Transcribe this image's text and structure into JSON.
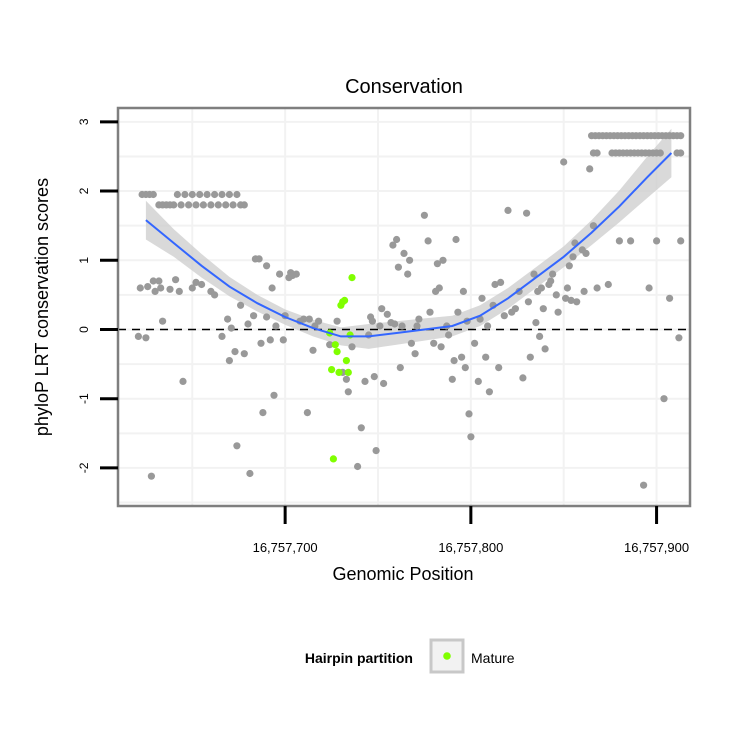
{
  "chart_data": {
    "type": "scatter",
    "title": "Conservation",
    "xlabel": "Genomic Position",
    "ylabel": "phyloP LRT conservation scores",
    "xlim": [
      16757610,
      16757918
    ],
    "ylim": [
      -2.55,
      3.2
    ],
    "x_ticks": [
      16757700,
      16757800,
      16757900
    ],
    "x_tick_labels": [
      "16,757,700",
      "16,757,800",
      "16,757,900"
    ],
    "y_ticks": [
      -2,
      -1,
      0,
      1,
      2,
      3
    ],
    "y_tick_labels": [
      "-2",
      "-1",
      "0",
      "1",
      "2",
      "3"
    ],
    "grid": true,
    "reference_line": {
      "y": 0,
      "style": "dashed"
    },
    "legend": {
      "title": "Hairpin partition",
      "position": "bottom",
      "entries": [
        "Mature"
      ]
    },
    "colors": {
      "background": "#ffffff",
      "grid": "#f2f2f2",
      "border": "#7f7f7f",
      "points": "#999999",
      "mature": "#80ff00",
      "smooth": "#3366ff",
      "ribbon": "#cccccc"
    },
    "series": [
      {
        "color": "#999999",
        "points": [
          [
            16757623,
            1.95
          ],
          [
            16757625,
            1.95
          ],
          [
            16757627,
            1.95
          ],
          [
            16757629,
            1.95
          ],
          [
            16757632,
            1.8
          ],
          [
            16757634,
            1.8
          ],
          [
            16757636,
            1.8
          ],
          [
            16757638,
            1.8
          ],
          [
            16757640,
            1.8
          ],
          [
            16757642,
            1.95
          ],
          [
            16757644,
            1.8
          ],
          [
            16757646,
            1.95
          ],
          [
            16757648,
            1.8
          ],
          [
            16757650,
            1.95
          ],
          [
            16757652,
            1.8
          ],
          [
            16757654,
            1.95
          ],
          [
            16757656,
            1.8
          ],
          [
            16757658,
            1.95
          ],
          [
            16757660,
            1.8
          ],
          [
            16757662,
            1.95
          ],
          [
            16757664,
            1.8
          ],
          [
            16757666,
            1.95
          ],
          [
            16757668,
            1.8
          ],
          [
            16757670,
            1.95
          ],
          [
            16757672,
            1.8
          ],
          [
            16757674,
            1.95
          ],
          [
            16757676,
            1.8
          ],
          [
            16757678,
            1.8
          ],
          [
            16757621,
            -0.1
          ],
          [
            16757622,
            0.6
          ],
          [
            16757625,
            -0.12
          ],
          [
            16757626,
            0.62
          ],
          [
            16757628,
            -2.12
          ],
          [
            16757629,
            0.7
          ],
          [
            16757630,
            0.55
          ],
          [
            16757632,
            0.7
          ],
          [
            16757633,
            0.6
          ],
          [
            16757634,
            0.12
          ],
          [
            16757638,
            0.58
          ],
          [
            16757641,
            0.72
          ],
          [
            16757643,
            0.55
          ],
          [
            16757645,
            -0.75
          ],
          [
            16757650,
            0.6
          ],
          [
            16757652,
            0.68
          ],
          [
            16757655,
            0.65
          ],
          [
            16757660,
            0.55
          ],
          [
            16757662,
            0.5
          ],
          [
            16757666,
            -0.1
          ],
          [
            16757669,
            0.15
          ],
          [
            16757670,
            -0.45
          ],
          [
            16757671,
            0.02
          ],
          [
            16757673,
            -0.32
          ],
          [
            16757674,
            -1.68
          ],
          [
            16757676,
            0.35
          ],
          [
            16757678,
            -0.35
          ],
          [
            16757680,
            0.08
          ],
          [
            16757681,
            -2.08
          ],
          [
            16757683,
            0.2
          ],
          [
            16757684,
            1.02
          ],
          [
            16757686,
            1.02
          ],
          [
            16757687,
            -0.2
          ],
          [
            16757688,
            -1.2
          ],
          [
            16757690,
            0.18
          ],
          [
            16757690,
            0.92
          ],
          [
            16757692,
            -0.15
          ],
          [
            16757693,
            0.6
          ],
          [
            16757694,
            -0.95
          ],
          [
            16757695,
            0.05
          ],
          [
            16757697,
            0.8
          ],
          [
            16757699,
            -0.15
          ],
          [
            16757700,
            0.2
          ],
          [
            16757702,
            0.75
          ],
          [
            16757703,
            0.82
          ],
          [
            16757704,
            0.78
          ],
          [
            16757706,
            0.8
          ],
          [
            16757708,
            0.12
          ],
          [
            16757710,
            0.15
          ],
          [
            16757712,
            -1.2
          ],
          [
            16757713,
            0.15
          ],
          [
            16757715,
            -0.3
          ],
          [
            16757716,
            0.05
          ],
          [
            16757718,
            0.12
          ],
          [
            16757724,
            -0.22
          ],
          [
            16757728,
            0.12
          ],
          [
            16757731,
            -0.62
          ],
          [
            16757733,
            -0.72
          ],
          [
            16757734,
            -0.9
          ],
          [
            16757736,
            -0.25
          ],
          [
            16757739,
            -1.98
          ],
          [
            16757741,
            -1.42
          ],
          [
            16757743,
            -0.75
          ],
          [
            16757745,
            -0.08
          ],
          [
            16757746,
            0.18
          ],
          [
            16757747,
            0.12
          ],
          [
            16757748,
            -0.68
          ],
          [
            16757749,
            -1.75
          ],
          [
            16757751,
            0.05
          ],
          [
            16757752,
            0.3
          ],
          [
            16757753,
            -0.78
          ],
          [
            16757755,
            0.22
          ],
          [
            16757757,
            0.1
          ],
          [
            16757758,
            1.22
          ],
          [
            16757759,
            0.08
          ],
          [
            16757760,
            1.3
          ],
          [
            16757761,
            0.9
          ],
          [
            16757762,
            -0.55
          ],
          [
            16757763,
            0.05
          ],
          [
            16757764,
            1.1
          ],
          [
            16757766,
            0.8
          ],
          [
            16757767,
            1.0
          ],
          [
            16757768,
            -0.2
          ],
          [
            16757770,
            -0.35
          ],
          [
            16757771,
            0.05
          ],
          [
            16757772,
            0.15
          ],
          [
            16757775,
            1.65
          ],
          [
            16757777,
            1.28
          ],
          [
            16757778,
            0.25
          ],
          [
            16757780,
            -0.2
          ],
          [
            16757781,
            0.55
          ],
          [
            16757782,
            0.95
          ],
          [
            16757783,
            0.6
          ],
          [
            16757784,
            -0.25
          ],
          [
            16757785,
            1.0
          ],
          [
            16757787,
            0.05
          ],
          [
            16757788,
            -0.08
          ],
          [
            16757790,
            -0.72
          ],
          [
            16757791,
            -0.45
          ],
          [
            16757792,
            1.3
          ],
          [
            16757793,
            0.25
          ],
          [
            16757795,
            -0.4
          ],
          [
            16757796,
            0.55
          ],
          [
            16757797,
            -0.55
          ],
          [
            16757798,
            0.12
          ],
          [
            16757799,
            -1.22
          ],
          [
            16757800,
            -1.55
          ],
          [
            16757802,
            -0.2
          ],
          [
            16757804,
            -0.75
          ],
          [
            16757805,
            0.15
          ],
          [
            16757806,
            0.45
          ],
          [
            16757808,
            -0.4
          ],
          [
            16757809,
            0.05
          ],
          [
            16757810,
            -0.9
          ],
          [
            16757812,
            0.35
          ],
          [
            16757813,
            0.65
          ],
          [
            16757815,
            -0.55
          ],
          [
            16757816,
            0.68
          ],
          [
            16757818,
            0.2
          ],
          [
            16757820,
            1.72
          ],
          [
            16757822,
            0.25
          ],
          [
            16757824,
            0.3
          ],
          [
            16757826,
            0.55
          ],
          [
            16757828,
            -0.7
          ],
          [
            16757830,
            1.68
          ],
          [
            16757831,
            0.4
          ],
          [
            16757832,
            -0.4
          ],
          [
            16757834,
            0.8
          ],
          [
            16757835,
            0.1
          ],
          [
            16757836,
            0.55
          ],
          [
            16757837,
            -0.1
          ],
          [
            16757838,
            0.6
          ],
          [
            16757839,
            0.3
          ],
          [
            16757840,
            -0.28
          ],
          [
            16757842,
            0.65
          ],
          [
            16757843,
            0.7
          ],
          [
            16757844,
            0.8
          ],
          [
            16757846,
            0.5
          ],
          [
            16757847,
            0.25
          ],
          [
            16757850,
            2.42
          ],
          [
            16757851,
            0.45
          ],
          [
            16757852,
            0.6
          ],
          [
            16757853,
            0.92
          ],
          [
            16757854,
            0.42
          ],
          [
            16757855,
            1.05
          ],
          [
            16757856,
            1.25
          ],
          [
            16757857,
            0.4
          ],
          [
            16757860,
            1.15
          ],
          [
            16757861,
            0.55
          ],
          [
            16757862,
            1.1
          ],
          [
            16757864,
            2.32
          ],
          [
            16757866,
            1.5
          ],
          [
            16757868,
            0.6
          ],
          [
            16757874,
            0.65
          ],
          [
            16757880,
            1.28
          ],
          [
            16757886,
            1.28
          ],
          [
            16757893,
            -2.25
          ],
          [
            16757896,
            0.6
          ],
          [
            16757900,
            1.28
          ],
          [
            16757904,
            -1.0
          ],
          [
            16757907,
            0.45
          ],
          [
            16757912,
            -0.12
          ],
          [
            16757913,
            1.28
          ],
          [
            16757865,
            2.8
          ],
          [
            16757867,
            2.8
          ],
          [
            16757869,
            2.8
          ],
          [
            16757871,
            2.8
          ],
          [
            16757873,
            2.8
          ],
          [
            16757875,
            2.8
          ],
          [
            16757877,
            2.8
          ],
          [
            16757879,
            2.8
          ],
          [
            16757881,
            2.8
          ],
          [
            16757883,
            2.8
          ],
          [
            16757885,
            2.8
          ],
          [
            16757887,
            2.8
          ],
          [
            16757889,
            2.8
          ],
          [
            16757891,
            2.8
          ],
          [
            16757893,
            2.8
          ],
          [
            16757895,
            2.8
          ],
          [
            16757897,
            2.8
          ],
          [
            16757899,
            2.8
          ],
          [
            16757901,
            2.8
          ],
          [
            16757903,
            2.8
          ],
          [
            16757905,
            2.8
          ],
          [
            16757907,
            2.8
          ],
          [
            16757909,
            2.8
          ],
          [
            16757911,
            2.8
          ],
          [
            16757913,
            2.8
          ],
          [
            16757866,
            2.55
          ],
          [
            16757868,
            2.55
          ],
          [
            16757876,
            2.55
          ],
          [
            16757878,
            2.55
          ],
          [
            16757880,
            2.55
          ],
          [
            16757882,
            2.55
          ],
          [
            16757884,
            2.55
          ],
          [
            16757886,
            2.55
          ],
          [
            16757888,
            2.55
          ],
          [
            16757890,
            2.55
          ],
          [
            16757892,
            2.55
          ],
          [
            16757894,
            2.55
          ],
          [
            16757896,
            2.55
          ],
          [
            16757898,
            2.55
          ],
          [
            16757900,
            2.55
          ],
          [
            16757902,
            2.55
          ],
          [
            16757911,
            2.55
          ],
          [
            16757913,
            2.55
          ]
        ]
      },
      {
        "name": "Mature",
        "color": "#80ff00",
        "points": [
          [
            16757724,
            -0.05
          ],
          [
            16757725,
            -0.58
          ],
          [
            16757726,
            -1.87
          ],
          [
            16757727,
            -0.22
          ],
          [
            16757728,
            -0.32
          ],
          [
            16757729,
            -0.62
          ],
          [
            16757730,
            0.35
          ],
          [
            16757731,
            0.4
          ],
          [
            16757732,
            0.42
          ],
          [
            16757733,
            -0.45
          ],
          [
            16757734,
            -0.62
          ],
          [
            16757735,
            -0.08
          ],
          [
            16757736,
            0.75
          ]
        ]
      }
    ],
    "smooth": {
      "x": [
        16757625,
        16757640,
        16757655,
        16757670,
        16757685,
        16757700,
        16757715,
        16757730,
        16757745,
        16757760,
        16757775,
        16757790,
        16757805,
        16757820,
        16757835,
        16757850,
        16757865,
        16757880,
        16757895,
        16757908
      ],
      "y": [
        1.58,
        1.25,
        0.92,
        0.62,
        0.38,
        0.18,
        0.02,
        -0.1,
        -0.1,
        -0.05,
        0.0,
        0.05,
        0.2,
        0.45,
        0.75,
        1.05,
        1.4,
        1.78,
        2.2,
        2.55
      ],
      "lower": [
        1.3,
        1.05,
        0.75,
        0.48,
        0.26,
        0.07,
        -0.1,
        -0.23,
        -0.28,
        -0.22,
        -0.16,
        -0.1,
        0.05,
        0.3,
        0.6,
        0.9,
        1.22,
        1.55,
        1.9,
        2.2
      ],
      "upper": [
        1.86,
        1.45,
        1.09,
        0.76,
        0.5,
        0.29,
        0.14,
        0.03,
        0.08,
        0.12,
        0.16,
        0.2,
        0.35,
        0.6,
        0.9,
        1.2,
        1.58,
        2.01,
        2.5,
        2.9
      ]
    }
  }
}
